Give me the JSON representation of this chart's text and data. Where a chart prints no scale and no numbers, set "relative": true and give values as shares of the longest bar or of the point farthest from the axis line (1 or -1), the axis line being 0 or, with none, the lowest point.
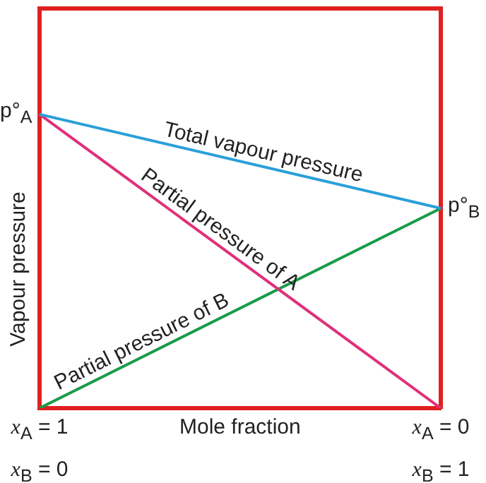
{
  "chart_data": {
    "type": "line",
    "relative": true,
    "xlabel": "Mole fraction",
    "ylabel": "Vapour pressure",
    "categories": [
      "x$_{A}$ = 1\nx$_{B}$ = 0",
      "x$_{A}$ = 0\nx$_{B}$ = 1"
    ],
    "series": [
      {
        "name": "Total vapour pressure",
        "color": "#2a9fd8",
        "values": [
          1,
          0.68
        ]
      },
      {
        "name": "Partial pressure of A",
        "color": "#e0307a",
        "values": [
          1,
          0
        ]
      },
      {
        "name": "Partial pressure of B",
        "color": "#1a9a4a",
        "values": [
          0,
          0.68
        ]
      }
    ],
    "annotations": [
      {
        "text": "p°$_{A}$",
        "x": "x$_{A}$ = 1\nx$_{B}$ = 0",
        "y": 1
      },
      {
        "text": "p°$_{B}$",
        "x": "x$_{A}$ = 0\nx$_{B}$ = 1",
        "y": 0.68
      }
    ],
    "legend": false,
    "marker": "none",
    "line_style": "solid"
  }
}
